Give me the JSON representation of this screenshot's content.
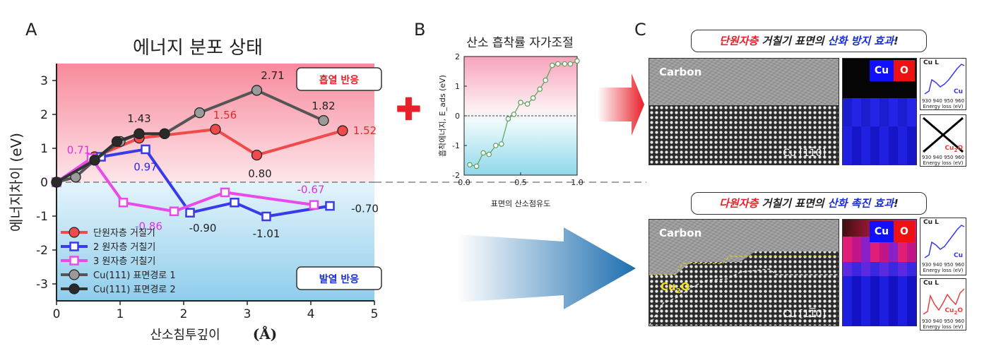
{
  "panels": {
    "a": "A",
    "b": "B",
    "c": "C"
  },
  "chart_data": [
    {
      "type": "line",
      "title": "에너지 분포 상태",
      "xlabel": "산소침투깊이",
      "xunit": "(Å)",
      "ylabel": "에너지차이 (eV)",
      "xlim": [
        0,
        5
      ],
      "ylim": [
        -3.5,
        3.5
      ],
      "xticks": [
        "0",
        "1",
        "2",
        "3",
        "4",
        "5"
      ],
      "yticks": [
        "3",
        "2",
        "1",
        "0",
        "-1",
        "-2",
        "-3"
      ],
      "region_labels": {
        "top": "흡열 반응",
        "bottom": "발열 반응"
      },
      "series": [
        {
          "name": "단원자층 거칠기",
          "color": "#f04a4a",
          "marker": "filled-circle",
          "x": [
            0,
            0.6,
            1.3,
            2.5,
            3.15,
            4.5
          ],
          "y": [
            0,
            0.75,
            1.3,
            1.56,
            0.8,
            1.52
          ]
        },
        {
          "name": "2 원자층 거칠기",
          "color": "#3a3ae8",
          "marker": "square",
          "x": [
            0,
            0.7,
            1.4,
            2.1,
            2.8,
            3.3,
            4.3
          ],
          "y": [
            0,
            0.75,
            0.97,
            -0.9,
            -0.6,
            -1.01,
            -0.7
          ]
        },
        {
          "name": "3 원자층 거칠기",
          "color": "#ea4aea",
          "marker": "square",
          "x": [
            0,
            0.55,
            1.05,
            1.85,
            2.65,
            4.05
          ],
          "y": [
            0,
            0.71,
            -0.6,
            -0.86,
            -0.3,
            -0.67
          ]
        },
        {
          "name": "Cu(111) 표면경로 1",
          "color": "#555555",
          "marker": "grey-circle",
          "x": [
            0,
            0.3,
            0.6,
            1.0,
            1.3,
            1.7,
            2.25,
            3.15,
            4.2
          ],
          "y": [
            0,
            0.15,
            0.65,
            1.2,
            1.43,
            1.43,
            2.05,
            2.71,
            1.82
          ]
        },
        {
          "name": "Cu(111) 표면경로 2",
          "color": "#333333",
          "marker": "dark-circle",
          "x": [
            0,
            0.6,
            0.95,
            1.3,
            1.7
          ],
          "y": [
            0,
            0.65,
            1.2,
            1.43,
            1.43
          ]
        }
      ],
      "data_labels": [
        {
          "text": "0.71",
          "x": 0.35,
          "y": 0.95,
          "color": "#e030e0"
        },
        {
          "text": "1.43",
          "x": 1.3,
          "y": 1.88,
          "color": "#222222"
        },
        {
          "text": "0.97",
          "x": 1.4,
          "y": 0.45,
          "color": "#2a2ae0"
        },
        {
          "text": "1.56",
          "x": 2.65,
          "y": 1.98,
          "color": "#e82828"
        },
        {
          "text": "2.71",
          "x": 3.4,
          "y": 3.15,
          "color": "#222222"
        },
        {
          "text": "1.82",
          "x": 4.2,
          "y": 2.25,
          "color": "#222222"
        },
        {
          "text": "1.52",
          "x": 4.85,
          "y": 1.52,
          "color": "#e82828"
        },
        {
          "text": "0.80",
          "x": 3.2,
          "y": 0.25,
          "color": "#222222"
        },
        {
          "text": "-0.86",
          "x": 1.45,
          "y": -1.3,
          "color": "#e030e0"
        },
        {
          "text": "-0.90",
          "x": 2.3,
          "y": -1.35,
          "color": "#222222"
        },
        {
          "text": "-1.01",
          "x": 3.3,
          "y": -1.52,
          "color": "#222222"
        },
        {
          "text": "-0.67",
          "x": 4.0,
          "y": -0.22,
          "color": "#e030e0"
        },
        {
          "text": "-0.70",
          "x": 4.85,
          "y": -0.78,
          "color": "#222222"
        }
      ]
    },
    {
      "type": "line",
      "title": "산소 흡착률 자가조절",
      "xlabel": "표면의 산소점유도",
      "ylabel": "흡착에너지, E_ads (eV)",
      "xlim": [
        0,
        1.0
      ],
      "ylim": [
        -2,
        2
      ],
      "xticks": [
        "0.0",
        "0.5",
        "1.0"
      ],
      "yticks": [
        "2",
        "1",
        "0",
        "-1",
        "-2"
      ],
      "series": [
        {
          "name": "",
          "color": "#5aa05a",
          "marker": "open-circle",
          "x": [
            0.05,
            0.11,
            0.17,
            0.22,
            0.28,
            0.33,
            0.39,
            0.44,
            0.5,
            0.56,
            0.61,
            0.67,
            0.72,
            0.78,
            0.83,
            0.89,
            0.94,
            1.0
          ],
          "y": [
            -1.65,
            -1.7,
            -1.25,
            -1.3,
            -1.0,
            -0.95,
            -0.1,
            0.05,
            0.45,
            0.4,
            0.6,
            0.9,
            1.2,
            1.7,
            1.75,
            1.75,
            1.75,
            1.85
          ]
        }
      ]
    }
  ],
  "panel_c": {
    "top": {
      "callout": {
        "part1": "단원자층",
        "part2": " 거칠기 표면의 ",
        "part3": "산화 방지 효과",
        "part4": "!"
      },
      "img_label": "Carbon",
      "lattice_label": "Cu [1",
      "lattice_bar": "1",
      "lattice_end": "0]",
      "map_cu": "Cu",
      "map_o": "O",
      "spec1_title": "Cu L",
      "spec1_tag": "Cu",
      "spec2_tag": "Cu",
      "spec2_sub": "2",
      "spec2_tag2": "O",
      "axis": "930 940 950 960",
      "axis_label": "Energy loss (eV)"
    },
    "bottom": {
      "callout": {
        "part1": "다원자층",
        "part2": " 거칠기 표면의 ",
        "part3": "산화 촉진 효과",
        "part4": "!"
      },
      "img_label": "Carbon",
      "oxide_label": "Cu",
      "oxide_sub": "2",
      "oxide_tail": "O",
      "lattice_label": "Cu [1",
      "lattice_bar": "1",
      "lattice_end": "0]",
      "map_cu": "Cu",
      "map_o": "O",
      "spec1_title": "Cu L",
      "spec1_tag": "Cu",
      "spec2_title": "Cu L",
      "spec2_tag": "Cu",
      "spec2_sub": "2",
      "spec2_tag2": "O",
      "axis": "930 940 950 960",
      "axis_label": "Energy loss (eV)"
    }
  },
  "plus_symbol": "✚",
  "colors": {
    "endo": "#f7a9b7",
    "exo": "#a9d9ef",
    "accent_red": "#e8202a",
    "accent_blue": "#1a2fd0"
  }
}
